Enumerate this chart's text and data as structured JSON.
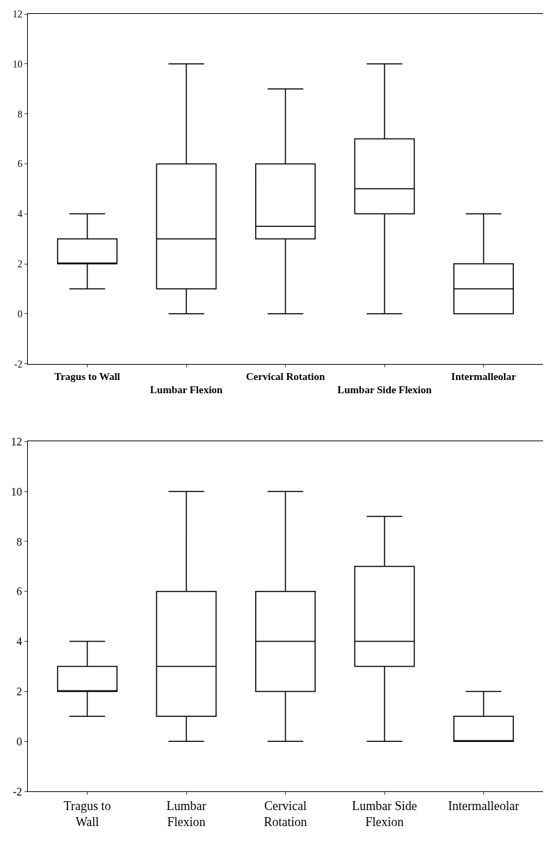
{
  "chart_data": [
    {
      "type": "box",
      "categories": [
        "Tragus to Wall",
        "Lumbar Flexion",
        "Cervical Rotation",
        "Lumbar Side Flexion",
        "Intermalleolar"
      ],
      "boxes": [
        {
          "low": 1,
          "q1": 2,
          "median": 2,
          "q3": 3,
          "high": 4
        },
        {
          "low": 0,
          "q1": 1,
          "median": 3,
          "q3": 6,
          "high": 10
        },
        {
          "low": 0,
          "q1": 3,
          "median": 3.5,
          "q3": 6,
          "high": 9
        },
        {
          "low": 0,
          "q1": 4,
          "median": 5,
          "q3": 7,
          "high": 10
        },
        {
          "low": 0,
          "q1": 0,
          "median": 1,
          "q3": 2,
          "high": 4
        }
      ],
      "color": "#000000",
      "ylim": [
        -2,
        12
      ],
      "yticks": [
        -2,
        0,
        2,
        4,
        6,
        8,
        10,
        12
      ]
    },
    {
      "type": "box",
      "categories": [
        "Tragus to Wall",
        "Lumbar Flexion",
        "Cervical Rotation",
        "Lumbar Side Flexion",
        "Intermalleolar"
      ],
      "boxes": [
        {
          "low": 1,
          "q1": 2,
          "median": 2,
          "q3": 3,
          "high": 4
        },
        {
          "low": 0,
          "q1": 1,
          "median": 3,
          "q3": 6,
          "high": 10
        },
        {
          "low": 0,
          "q1": 2,
          "median": 4,
          "q3": 6,
          "high": 10
        },
        {
          "low": 0,
          "q1": 3,
          "median": 4,
          "q3": 7,
          "high": 9
        },
        {
          "low": 0,
          "q1": 0,
          "median": 0,
          "q3": 1,
          "high": 2
        }
      ],
      "color": "#000000",
      "ylim": [
        -2,
        12
      ],
      "yticks": [
        -2,
        0,
        2,
        4,
        6,
        8,
        10,
        12
      ]
    }
  ]
}
